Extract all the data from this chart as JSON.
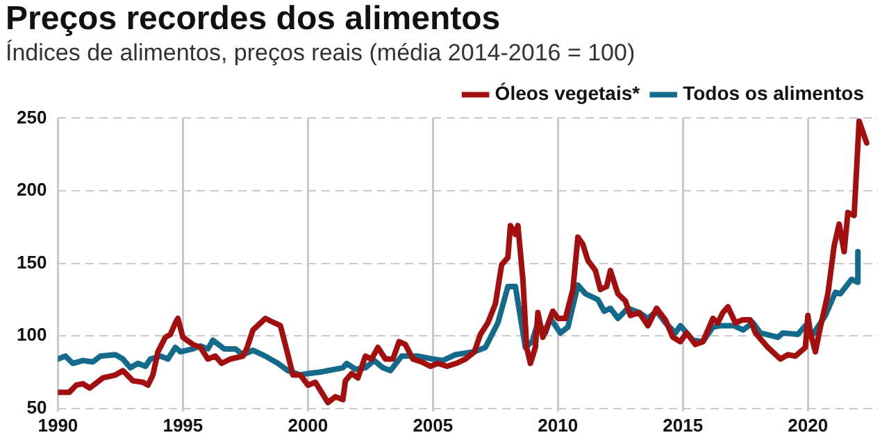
{
  "chart_data": {
    "type": "line",
    "title": "Preços recordes dos alimentos",
    "subtitle": "Índices de alimentos, preços reais (média 2014-2016 = 100)",
    "xlim": [
      1990,
      2022.8
    ],
    "xticks": [
      1990,
      1995,
      2000,
      2005,
      2010,
      2015,
      2020
    ],
    "ylim": [
      48,
      250
    ],
    "yticks": [
      50,
      100,
      150,
      200,
      250
    ],
    "grid": true,
    "legend": "top right",
    "marker": "none",
    "line_style": "solid",
    "series": [
      {
        "name": "Óleos vegetais*",
        "color": "#a30f0f",
        "x": [
          1990.0,
          1990.45,
          1990.73,
          1991.0,
          1991.27,
          1991.8,
          1992.3,
          1992.6,
          1993.0,
          1993.4,
          1993.6,
          1993.8,
          1994.0,
          1994.3,
          1994.5,
          1994.7,
          1994.8,
          1995.0,
          1995.4,
          1995.7,
          1996.0,
          1996.3,
          1996.55,
          1996.9,
          1997.4,
          1997.55,
          1997.8,
          1998.3,
          1998.65,
          1998.9,
          1999.2,
          1999.4,
          1999.7,
          2000.0,
          2000.3,
          2000.55,
          2000.8,
          2001.1,
          2001.4,
          2001.5,
          2001.75,
          2002.0,
          2002.3,
          2002.55,
          2002.8,
          2003.1,
          2003.4,
          2003.65,
          2003.9,
          2004.2,
          2004.55,
          2004.9,
          2005.2,
          2005.57,
          2005.93,
          2006.3,
          2006.66,
          2006.9,
          2007.2,
          2007.5,
          2007.75,
          2008.0,
          2008.1,
          2008.3,
          2008.4,
          2008.6,
          2008.75,
          2008.9,
          2009.1,
          2009.2,
          2009.4,
          2009.8,
          2010.0,
          2010.3,
          2010.6,
          2010.8,
          2011.0,
          2011.2,
          2011.5,
          2011.7,
          2011.95,
          2012.1,
          2012.4,
          2012.7,
          2012.9,
          2013.25,
          2013.6,
          2013.95,
          2014.3,
          2014.6,
          2014.9,
          2015.15,
          2015.5,
          2015.8,
          2016.2,
          2016.4,
          2016.6,
          2016.8,
          2017.1,
          2017.4,
          2017.7,
          2017.9,
          2018.4,
          2018.9,
          2019.2,
          2019.5,
          2019.9,
          2020.0,
          2020.1,
          2020.3,
          2020.5,
          2020.8,
          2021.05,
          2021.25,
          2021.45,
          2021.6,
          2021.85,
          2022.05,
          2022.35
        ],
        "values": [
          61,
          61,
          66,
          67,
          64,
          71,
          73,
          76,
          69,
          68,
          66,
          73,
          89,
          99,
          101,
          109,
          112,
          99,
          94,
          92,
          84,
          86,
          81,
          84,
          86,
          91,
          104,
          112,
          109,
          107,
          87,
          73,
          73,
          66,
          68,
          61,
          54,
          58,
          56,
          69,
          74,
          71,
          86,
          84,
          92,
          84,
          84,
          96,
          94,
          84,
          82,
          79,
          81,
          79,
          81,
          84,
          89,
          101,
          109,
          122,
          149,
          154,
          176,
          170,
          176,
          139,
          92,
          81,
          92,
          116,
          99,
          117,
          112,
          112,
          132,
          168,
          163,
          152,
          145,
          132,
          134,
          145,
          129,
          124,
          114,
          116,
          107,
          119,
          111,
          99,
          96,
          102,
          94,
          96,
          112,
          109,
          116,
          120,
          109,
          111,
          111,
          102,
          92,
          84,
          87,
          86,
          92,
          114,
          102,
          89,
          106,
          129,
          162,
          177,
          158,
          185,
          183,
          248,
          233
        ]
      },
      {
        "name": "Todos os alimentos",
        "color": "#136a8a",
        "x": [
          1990.0,
          1990.3,
          1990.6,
          1991.0,
          1991.4,
          1991.7,
          1992.3,
          1992.6,
          1992.9,
          1993.2,
          1993.5,
          1993.7,
          1994.1,
          1994.4,
          1994.7,
          1994.9,
          1995.4,
          1995.7,
          1996.0,
          1996.2,
          1996.65,
          1997.1,
          1997.4,
          1997.8,
          1998.3,
          1998.8,
          1999.2,
          1999.7,
          2000.0,
          2000.5,
          2000.8,
          2001.4,
          2001.55,
          2001.9,
          2002.3,
          2002.65,
          2003.0,
          2003.3,
          2003.75,
          2004.4,
          2005.0,
          2005.4,
          2005.9,
          2006.66,
          2007.1,
          2007.6,
          2008.0,
          2008.3,
          2008.7,
          2008.97,
          2009.2,
          2009.5,
          2009.7,
          2010.1,
          2010.4,
          2010.8,
          2011.1,
          2011.6,
          2011.85,
          2012.1,
          2012.4,
          2012.8,
          2013.25,
          2013.6,
          2013.95,
          2014.3,
          2014.7,
          2014.9,
          2015.4,
          2015.8,
          2016.2,
          2016.5,
          2017.05,
          2017.4,
          2017.8,
          2018.1,
          2018.8,
          2019.0,
          2019.6,
          2019.9,
          2020.2,
          2020.7,
          2021.1,
          2021.3,
          2021.75,
          2021.97,
          2022.0
        ],
        "values": [
          84,
          86,
          81,
          83,
          82,
          86,
          87,
          84,
          78,
          81,
          79,
          84,
          86,
          84,
          92,
          89,
          91,
          93,
          91,
          97,
          91,
          91,
          87,
          90,
          86,
          81,
          76,
          73,
          74,
          75,
          76,
          78,
          81,
          77,
          78,
          83,
          78,
          76,
          86,
          86,
          84,
          83,
          87,
          89,
          92,
          109,
          134,
          134,
          92,
          96,
          109,
          102,
          112,
          102,
          106,
          135,
          129,
          125,
          117,
          119,
          112,
          119,
          116,
          112,
          117,
          109,
          102,
          107,
          97,
          96,
          106,
          107,
          107,
          104,
          109,
          102,
          99,
          102,
          101,
          107,
          101,
          114,
          130,
          129,
          139,
          137,
          158
        ]
      }
    ]
  }
}
